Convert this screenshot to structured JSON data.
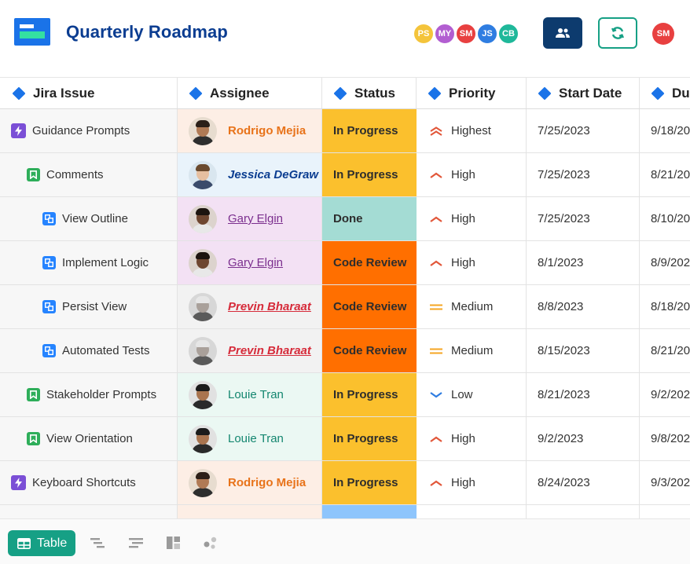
{
  "app": {
    "title": "Quarterly Roadmap"
  },
  "collaborators": [
    {
      "initials": "PS",
      "color": "#f4c43b"
    },
    {
      "initials": "MY",
      "color": "#b25ed1"
    },
    {
      "initials": "SM",
      "color": "#e84040"
    },
    {
      "initials": "JS",
      "color": "#2f7de1"
    },
    {
      "initials": "CB",
      "color": "#1fb89a"
    }
  ],
  "current_user": {
    "initials": "SM",
    "color": "#e84040"
  },
  "header_buttons": {
    "users_icon": "users-icon",
    "sync_icon": "sync-icon"
  },
  "columns": [
    "Jira Issue",
    "Assignee",
    "Status",
    "Priority",
    "Start Date",
    "Du"
  ],
  "rows": [
    {
      "issue": "Guidance Prompts",
      "type": "epic",
      "indent": 0,
      "assignee": "Rodrigo Mejia",
      "assignee_style": "orange",
      "status": "In Progress",
      "priority": "Highest",
      "start": "7/25/2023",
      "due": "9/18/20"
    },
    {
      "issue": "Comments",
      "type": "story",
      "indent": 1,
      "assignee": "Jessica DeGraw",
      "assignee_style": "navy",
      "status": "In Progress",
      "priority": "High",
      "start": "7/25/2023",
      "due": "8/21/20"
    },
    {
      "issue": "View Outline",
      "type": "subtask",
      "indent": 2,
      "assignee": "Gary Elgin",
      "assignee_style": "purple",
      "status": "Done",
      "priority": "High",
      "start": "7/25/2023",
      "due": "8/10/20"
    },
    {
      "issue": "Implement Logic",
      "type": "subtask",
      "indent": 2,
      "assignee": "Gary Elgin",
      "assignee_style": "purple",
      "status": "Code Review",
      "priority": "High",
      "start": "8/1/2023",
      "due": "8/9/202"
    },
    {
      "issue": "Persist View",
      "type": "subtask",
      "indent": 2,
      "assignee": "Previn Bharaat",
      "assignee_style": "red",
      "status": "Code Review",
      "priority": "Medium",
      "start": "8/8/2023",
      "due": "8/18/20"
    },
    {
      "issue": "Automated Tests",
      "type": "subtask",
      "indent": 2,
      "assignee": "Previn Bharaat",
      "assignee_style": "red",
      "status": "Code Review",
      "priority": "Medium",
      "start": "8/15/2023",
      "due": "8/21/20"
    },
    {
      "issue": "Stakeholder Prompts",
      "type": "story",
      "indent": 1,
      "assignee": "Louie Tran",
      "assignee_style": "teal",
      "status": "In Progress",
      "priority": "Low",
      "start": "8/21/2023",
      "due": "9/2/202"
    },
    {
      "issue": "View Orientation",
      "type": "story",
      "indent": 1,
      "assignee": "Louie Tran",
      "assignee_style": "teal",
      "status": "In Progress",
      "priority": "High",
      "start": "9/2/2023",
      "due": "9/8/202"
    },
    {
      "issue": "Keyboard Shortcuts",
      "type": "epic",
      "indent": 0,
      "assignee": "Rodrigo Mejia",
      "assignee_style": "orange",
      "status": "In Progress",
      "priority": "High",
      "start": "8/24/2023",
      "due": "9/3/202"
    },
    {
      "issue": "",
      "type": "",
      "indent": 0,
      "assignee": "",
      "assignee_style": "orange",
      "status": "",
      "status_color": "#8ec5fc",
      "priority": "",
      "start": "",
      "due": ""
    }
  ],
  "styles": {
    "assignee": {
      "orange": {
        "bg": "#fdeee5",
        "fg": "#e8731a",
        "italic": false,
        "underline": false
      },
      "navy": {
        "bg": "#e9f3fb",
        "fg": "#0b3d91",
        "italic": true,
        "underline": false
      },
      "purple": {
        "bg": "#f3e1f4",
        "fg": "#7b2f8e",
        "italic": false,
        "underline": true
      },
      "red": {
        "bg": "#f2f2f2",
        "fg": "#d62b3a",
        "italic": true,
        "underline": true
      },
      "teal": {
        "bg": "#ebf8f3",
        "fg": "#13866f",
        "italic": false,
        "underline": false
      }
    },
    "status": {
      "In Progress": "#fbc02d",
      "Done": "#a4dcd4",
      "Code Review": "#ff6f00"
    },
    "priority_colors": {
      "Highest": "#e2573a",
      "High": "#e2573a",
      "Medium": "#f5a623",
      "Low": "#2f7de1"
    }
  },
  "toolbar": {
    "table_label": "Table",
    "table_icon": "table-icon",
    "views": [
      "gantt-icon",
      "timeline-icon",
      "board-icon",
      "graph-icon"
    ]
  }
}
